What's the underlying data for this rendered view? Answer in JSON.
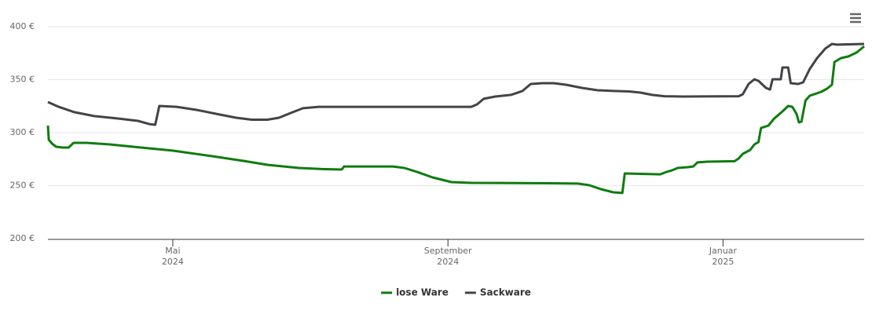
{
  "chart_data": {
    "type": "line",
    "xlim": [
      2024.182,
      2025.171
    ],
    "xticks": [
      {
        "value": 2024.3333,
        "label": "Mai 2024"
      },
      {
        "value": 2024.6667,
        "label": "September 2024"
      },
      {
        "value": 2025.0,
        "label": "Januar 2025"
      }
    ],
    "ylim": [
      200,
      400
    ],
    "yticks": [
      {
        "value": 200,
        "label": "200 €"
      },
      {
        "value": 250,
        "label": "250 €"
      },
      {
        "value": 300,
        "label": "300 €"
      },
      {
        "value": 350,
        "label": "350 €"
      },
      {
        "value": 400,
        "label": "400 €"
      }
    ],
    "grid": true,
    "legend": "bottom",
    "series": [
      {
        "name": "lose Ware",
        "color": "#0e7c0e",
        "x": [
          2024.182,
          2024.183,
          2024.187,
          2024.192,
          2024.2,
          2024.207,
          2024.21,
          2024.213,
          2024.229,
          2024.257,
          2024.295,
          2024.333,
          2024.381,
          2024.419,
          2024.448,
          2024.486,
          2024.514,
          2024.538,
          2024.541,
          2024.6,
          2024.614,
          2024.629,
          2024.648,
          2024.671,
          2024.695,
          2024.79,
          2024.824,
          2024.838,
          2024.852,
          2024.867,
          2024.878,
          2024.881,
          2024.924,
          2024.932,
          2024.938,
          2024.945,
          2024.957,
          2024.964,
          2024.969,
          2024.981,
          2025.014,
          2025.019,
          2025.024,
          2025.033,
          2025.038,
          2025.043,
          2025.046,
          2025.052,
          2025.055,
          2025.062,
          2025.072,
          2025.079,
          2025.084,
          2025.089,
          2025.092,
          2025.095,
          2025.1,
          2025.105,
          2025.119,
          2025.126,
          2025.132,
          2025.135,
          2025.143,
          2025.152,
          2025.162,
          2025.171
        ],
        "values": [
          306.7,
          293.3,
          289.6,
          286.7,
          285.9,
          285.9,
          288.1,
          290.4,
          290.4,
          288.9,
          285.9,
          283.0,
          277.8,
          273.3,
          269.6,
          266.7,
          265.6,
          265.2,
          268.1,
          268.1,
          266.7,
          263.0,
          257.8,
          253.3,
          252.6,
          252.2,
          251.9,
          250.4,
          246.7,
          243.7,
          243.0,
          261.5,
          260.7,
          263.0,
          264.4,
          266.7,
          267.4,
          268.1,
          271.9,
          272.6,
          273.0,
          275.6,
          280.0,
          283.7,
          288.9,
          291.1,
          304.4,
          305.9,
          306.7,
          313.3,
          320.0,
          325.2,
          324.4,
          317.8,
          309.6,
          310.4,
          330.4,
          334.8,
          338.5,
          341.5,
          345.2,
          366.7,
          370.4,
          371.9,
          375.6,
          381.5
        ]
      },
      {
        "name": "Sackware",
        "color": "#434348",
        "x": [
          2024.182,
          2024.195,
          2024.214,
          2024.238,
          2024.267,
          2024.291,
          2024.305,
          2024.312,
          2024.317,
          2024.338,
          2024.362,
          2024.391,
          2024.41,
          2024.429,
          2024.448,
          2024.462,
          2024.476,
          2024.491,
          2024.51,
          2024.695,
          2024.702,
          2024.71,
          2024.724,
          2024.743,
          2024.757,
          2024.767,
          2024.781,
          2024.795,
          2024.81,
          2024.829,
          2024.848,
          2024.867,
          2024.886,
          2024.9,
          2024.914,
          2024.929,
          2024.952,
          2025.019,
          2025.024,
          2025.031,
          2025.038,
          2025.043,
          2025.052,
          2025.057,
          2025.06,
          2025.07,
          2025.072,
          2025.079,
          2025.082,
          2025.091,
          2025.097,
          2025.105,
          2025.114,
          2025.124,
          2025.132,
          2025.138,
          2025.171
        ],
        "values": [
          328.9,
          324.4,
          319.3,
          315.6,
          313.3,
          311.1,
          308.1,
          307.4,
          325.2,
          324.4,
          321.5,
          317.0,
          314.1,
          312.2,
          312.2,
          314.1,
          318.5,
          323.0,
          324.4,
          324.4,
          326.7,
          331.9,
          334.1,
          335.6,
          339.3,
          345.9,
          346.7,
          346.7,
          345.2,
          342.2,
          340.0,
          339.3,
          338.9,
          337.8,
          335.6,
          334.4,
          334.1,
          334.4,
          336.3,
          345.9,
          350.4,
          348.9,
          342.2,
          340.7,
          350.4,
          350.4,
          361.5,
          361.5,
          346.7,
          345.9,
          347.4,
          360.0,
          370.4,
          379.3,
          383.7,
          383.0,
          383.7
        ]
      }
    ]
  }
}
